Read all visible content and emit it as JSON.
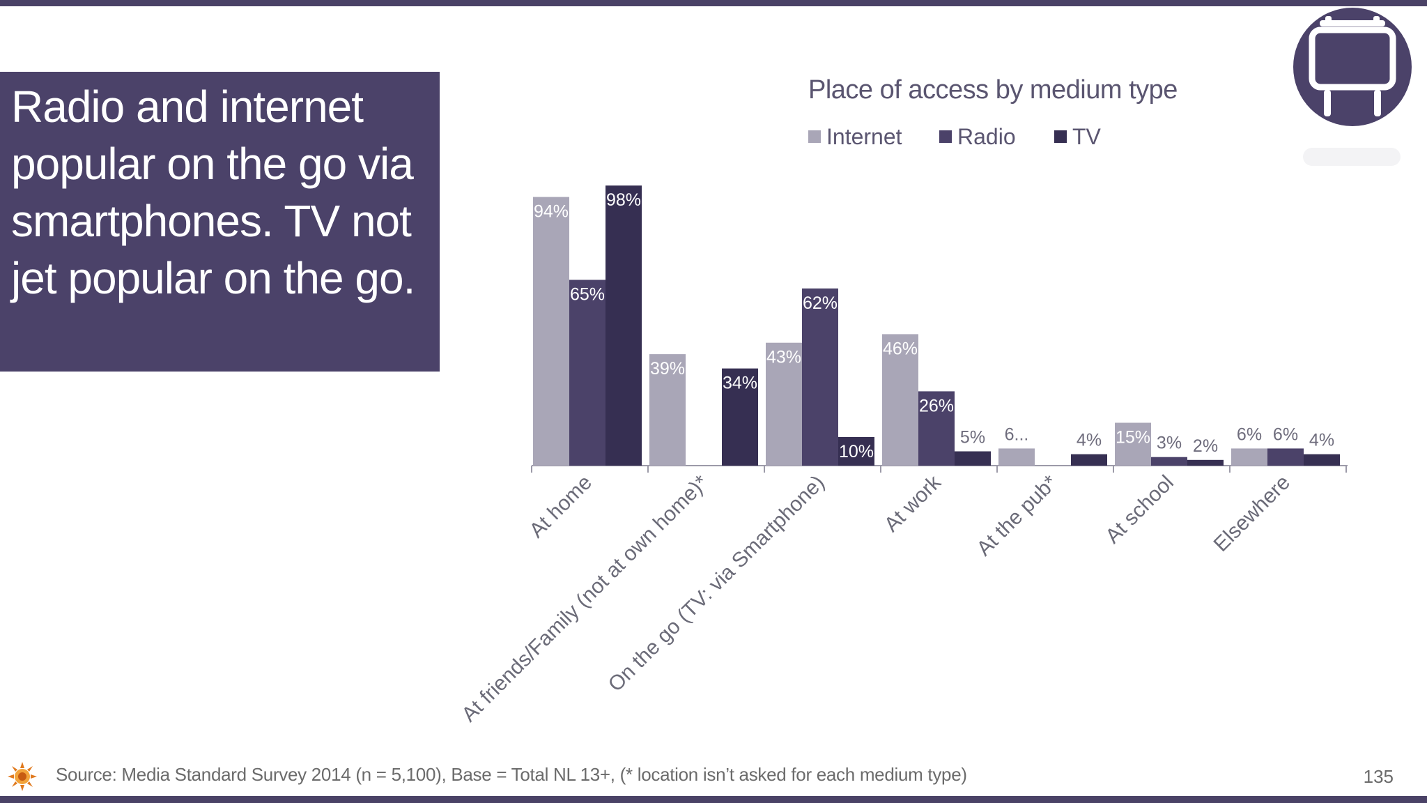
{
  "slide": {
    "headline": "Radio and internet popular on the go via smartphones. TV not jet popular on the go.",
    "footer_source": "Source: Media Standard Survey 2014 (n =  5,100), Base = Total NL 13+, (* location isn’t asked for each medium type)",
    "page_number": "135",
    "badge_icon": "billboard-icon",
    "logo_icon": "sun-logo-icon",
    "colors": {
      "band": "#4a4266",
      "headline_box": "#4b4269"
    }
  },
  "chart_data": {
    "type": "bar",
    "title": "Place of access by medium type",
    "categories": [
      "At home",
      "At friends/Family (not at own home)*",
      "On the go (TV: via Smartphone)",
      "At work",
      "At the pub*",
      "At school",
      "Elsewhere"
    ],
    "series": [
      {
        "name": "Internet",
        "color": "#a9a6b7",
        "values": [
          94,
          39,
          43,
          46,
          6,
          15,
          6
        ],
        "labels": [
          "94%",
          "39%",
          "43%",
          "46%",
          "6...",
          "15%",
          "6%"
        ]
      },
      {
        "name": "Radio",
        "color": "#4b4269",
        "values": [
          65,
          null,
          62,
          26,
          null,
          3,
          6
        ],
        "labels": [
          "65%",
          null,
          "62%",
          "26%",
          null,
          "3%",
          "6%"
        ]
      },
      {
        "name": "TV",
        "color": "#362f52",
        "values": [
          98,
          34,
          10,
          5,
          4,
          2,
          4
        ],
        "labels": [
          "98%",
          "34%",
          "10%",
          "5%",
          "4%",
          "2%",
          "4%"
        ]
      }
    ],
    "ylim": [
      0,
      100
    ],
    "grid": false,
    "legend_position": "top"
  }
}
